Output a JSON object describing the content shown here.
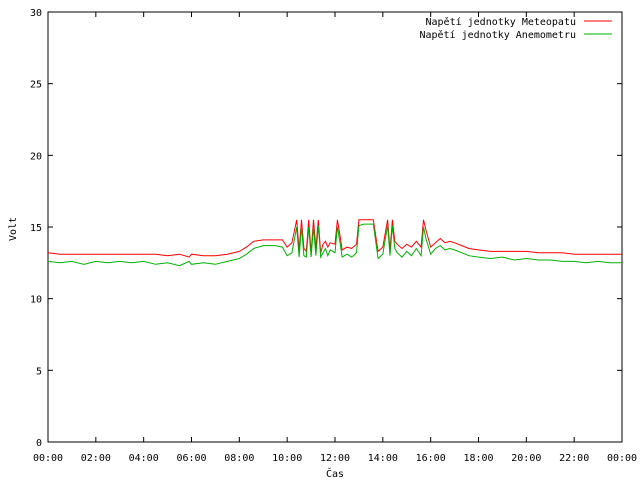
{
  "chart_data": {
    "type": "line",
    "xlabel": "Čas",
    "ylabel": "Volt",
    "xlim": [
      0,
      24
    ],
    "ylim": [
      0,
      30
    ],
    "x_ticks": [
      {
        "value": 0,
        "label": "00:00"
      },
      {
        "value": 2,
        "label": "02:00"
      },
      {
        "value": 4,
        "label": "04:00"
      },
      {
        "value": 6,
        "label": "06:00"
      },
      {
        "value": 8,
        "label": "08:00"
      },
      {
        "value": 10,
        "label": "10:00"
      },
      {
        "value": 12,
        "label": "12:00"
      },
      {
        "value": 14,
        "label": "14:00"
      },
      {
        "value": 16,
        "label": "16:00"
      },
      {
        "value": 18,
        "label": "18:00"
      },
      {
        "value": 20,
        "label": "20:00"
      },
      {
        "value": 22,
        "label": "22:00"
      },
      {
        "value": 24,
        "label": "00:00"
      }
    ],
    "y_ticks": [
      {
        "value": 0,
        "label": "0"
      },
      {
        "value": 5,
        "label": "5"
      },
      {
        "value": 10,
        "label": "10"
      },
      {
        "value": 15,
        "label": "15"
      },
      {
        "value": 20,
        "label": "20"
      },
      {
        "value": 25,
        "label": "25"
      },
      {
        "value": 30,
        "label": "30"
      }
    ],
    "grid": false,
    "legend_position": "top-right",
    "series": [
      {
        "name": "Napětí jednotky Meteopatu",
        "color": "#ff0000",
        "x": [
          0,
          0.5,
          1,
          1.5,
          2,
          2.5,
          3,
          3.5,
          4,
          4.5,
          5,
          5.5,
          5.9,
          6,
          6.5,
          7,
          7.5,
          8,
          8.3,
          8.6,
          9,
          9.5,
          9.8,
          10,
          10.2,
          10.4,
          10.5,
          10.6,
          10.7,
          10.8,
          10.9,
          11,
          11.1,
          11.2,
          11.3,
          11.4,
          11.5,
          11.6,
          11.7,
          11.8,
          12,
          12.1,
          12.2,
          12.3,
          12.5,
          12.7,
          12.9,
          13,
          13.2,
          13.4,
          13.6,
          13.8,
          14,
          14.2,
          14.3,
          14.4,
          14.5,
          14.6,
          14.8,
          15,
          15.2,
          15.4,
          15.6,
          15.7,
          15.8,
          16,
          16.2,
          16.4,
          16.6,
          16.8,
          17,
          17.3,
          17.6,
          18,
          18.5,
          19,
          19.5,
          20,
          20.5,
          21,
          21.5,
          22,
          22.5,
          23,
          23.5,
          24
        ],
        "y": [
          13.2,
          13.1,
          13.1,
          13.1,
          13.1,
          13.1,
          13.1,
          13.1,
          13.1,
          13.1,
          13.0,
          13.1,
          12.9,
          13.1,
          13.0,
          13.0,
          13.1,
          13.3,
          13.6,
          14.0,
          14.1,
          14.1,
          14.1,
          13.6,
          13.9,
          15.5,
          13.4,
          15.5,
          13.5,
          13.3,
          15.5,
          13.2,
          15.5,
          13.5,
          15.5,
          13.2,
          13.8,
          14.0,
          13.6,
          13.9,
          13.8,
          15.5,
          14.5,
          13.4,
          13.6,
          13.5,
          13.8,
          15.5,
          15.5,
          15.5,
          15.5,
          13.3,
          13.6,
          15.5,
          13.4,
          15.5,
          14.0,
          13.8,
          13.5,
          13.8,
          13.6,
          14.0,
          13.6,
          15.5,
          14.8,
          13.6,
          13.9,
          14.2,
          13.9,
          14.0,
          13.9,
          13.7,
          13.5,
          13.4,
          13.3,
          13.3,
          13.3,
          13.3,
          13.2,
          13.2,
          13.2,
          13.1,
          13.1,
          13.1,
          13.1,
          13.1
        ]
      },
      {
        "name": "Napětí jednotky Anemometru",
        "color": "#00b000",
        "x": [
          0,
          0.5,
          1,
          1.5,
          2,
          2.5,
          3,
          3.5,
          4,
          4.5,
          5,
          5.5,
          5.9,
          6,
          6.5,
          7,
          7.5,
          8,
          8.3,
          8.6,
          9,
          9.5,
          9.8,
          10,
          10.2,
          10.4,
          10.5,
          10.6,
          10.7,
          10.8,
          10.9,
          11,
          11.1,
          11.2,
          11.3,
          11.4,
          11.5,
          11.6,
          11.7,
          11.8,
          12,
          12.1,
          12.2,
          12.3,
          12.5,
          12.7,
          12.9,
          13,
          13.2,
          13.4,
          13.6,
          13.8,
          14,
          14.2,
          14.3,
          14.4,
          14.5,
          14.6,
          14.8,
          15,
          15.2,
          15.4,
          15.6,
          15.7,
          15.8,
          16,
          16.2,
          16.4,
          16.6,
          16.8,
          17,
          17.3,
          17.6,
          18,
          18.5,
          19,
          19.5,
          20,
          20.5,
          21,
          21.5,
          22,
          22.5,
          23,
          23.5,
          24
        ],
        "y": [
          12.6,
          12.5,
          12.6,
          12.4,
          12.6,
          12.5,
          12.6,
          12.5,
          12.6,
          12.4,
          12.5,
          12.3,
          12.6,
          12.4,
          12.5,
          12.4,
          12.6,
          12.8,
          13.1,
          13.5,
          13.7,
          13.7,
          13.6,
          13.0,
          13.2,
          15.0,
          12.9,
          15.0,
          13.0,
          12.9,
          15.0,
          12.9,
          15.0,
          13.0,
          15.1,
          12.9,
          13.2,
          13.5,
          13.0,
          13.4,
          13.2,
          15.0,
          14.0,
          12.9,
          13.1,
          12.9,
          13.2,
          15.1,
          15.2,
          15.2,
          15.2,
          12.8,
          13.1,
          15.1,
          13.0,
          15.1,
          13.5,
          13.2,
          12.9,
          13.3,
          13.0,
          13.5,
          13.0,
          15.0,
          14.2,
          13.1,
          13.5,
          13.7,
          13.4,
          13.5,
          13.4,
          13.2,
          13.0,
          12.9,
          12.8,
          12.9,
          12.7,
          12.8,
          12.7,
          12.7,
          12.6,
          12.6,
          12.5,
          12.6,
          12.5,
          12.5
        ]
      }
    ]
  }
}
